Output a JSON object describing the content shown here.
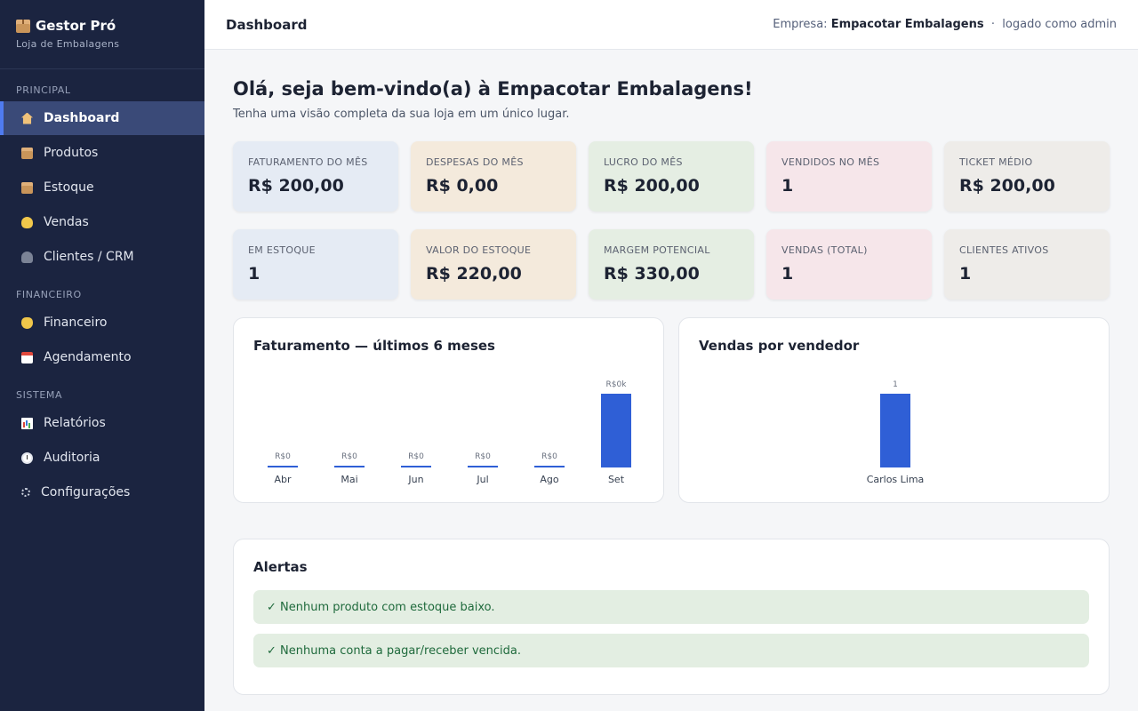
{
  "app": {
    "name": "Gestor Pró",
    "subtitle": "Loja de Embalagens"
  },
  "sidebar": {
    "sections": [
      "PRINCIPAL",
      "FINANCEIRO",
      "SISTEMA"
    ],
    "items": [
      {
        "label": "Dashboard",
        "icon": "home-icon"
      },
      {
        "label": "Produtos",
        "icon": "box-icon"
      },
      {
        "label": "Estoque",
        "icon": "box-icon"
      },
      {
        "label": "Vendas",
        "icon": "handshake-icon"
      },
      {
        "label": "Clientes / CRM",
        "icon": "people-icon"
      },
      {
        "label": "Financeiro",
        "icon": "money-bag-icon"
      },
      {
        "label": "Agendamento",
        "icon": "calendar-icon"
      },
      {
        "label": "Relatórios",
        "icon": "bar-chart-icon"
      },
      {
        "label": "Auditoria",
        "icon": "clock-icon"
      },
      {
        "label": "Configurações",
        "icon": "gear-icon"
      }
    ]
  },
  "header": {
    "title": "Dashboard",
    "company_label": "Empresa:",
    "company_name": "Empacotar Embalagens",
    "separator": "·",
    "logged_as": "logado como admin"
  },
  "welcome": {
    "title": "Olá, seja bem-vindo(a) à Empacotar Embalagens!",
    "subtitle": "Tenha uma visão completa da sua loja em um único lugar."
  },
  "kpis": [
    {
      "label": "FATURAMENTO DO MÊS",
      "value": "R$ 200,00"
    },
    {
      "label": "DESPESAS DO MÊS",
      "value": "R$ 0,00"
    },
    {
      "label": "LUCRO DO MÊS",
      "value": "R$ 200,00"
    },
    {
      "label": "VENDIDOS NO MÊS",
      "value": "1"
    },
    {
      "label": "TICKET MÉDIO",
      "value": "R$ 200,00"
    },
    {
      "label": "EM ESTOQUE",
      "value": "1"
    },
    {
      "label": "VALOR DO ESTOQUE",
      "value": "R$ 220,00"
    },
    {
      "label": "MARGEM POTENCIAL",
      "value": "R$ 330,00"
    },
    {
      "label": "VENDAS (TOTAL)",
      "value": "1"
    },
    {
      "label": "CLIENTES ATIVOS",
      "value": "1"
    }
  ],
  "colors": {
    "bar": "#2f5fd6",
    "accent": "#4f7bf0",
    "sidebar_bg": "#1b2440"
  },
  "chart_data": [
    {
      "type": "bar",
      "title": "Faturamento — últimos 6 meses",
      "categories": [
        "Abr",
        "Mai",
        "Jun",
        "Jul",
        "Ago",
        "Set"
      ],
      "values": [
        0,
        0,
        0,
        0,
        0,
        200
      ],
      "data_labels": [
        "R$0",
        "R$0",
        "R$0",
        "R$0",
        "R$0",
        "R$0k"
      ]
    },
    {
      "type": "bar",
      "title": "Vendas por vendedor",
      "categories": [
        "Carlos Lima"
      ],
      "values": [
        1
      ],
      "data_labels": [
        "1"
      ]
    }
  ],
  "alerts": {
    "title": "Alertas",
    "items": [
      "✓ Nenhum produto com estoque baixo.",
      "✓ Nenhuma conta a pagar/receber vencida."
    ]
  }
}
